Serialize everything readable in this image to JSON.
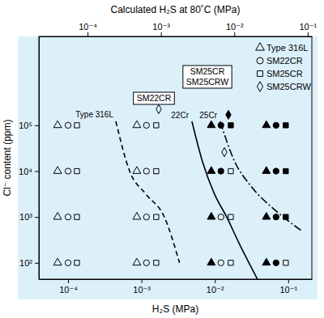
{
  "chart_data": {
    "type": "scatter",
    "log": true,
    "x_label": "H₂S (MPa)",
    "x2_label": "Calculated H₂S at 80˚C (MPa)",
    "y_label": "Cl⁻ content (ppm)",
    "xlim": [
      4e-05,
      0.21
    ],
    "x2lim": [
      2.17e-05,
      0.114
    ],
    "ylim": [
      44,
      8700000
    ],
    "xticks": [
      {
        "value": 0.0001,
        "label": "10⁻⁴"
      },
      {
        "value": 0.001,
        "label": "10⁻³"
      },
      {
        "value": 0.01,
        "label": "10⁻²"
      },
      {
        "value": 0.1,
        "label": "10⁻¹"
      }
    ],
    "x2ticks": [
      {
        "value": 0.0001,
        "label": "10⁻⁴"
      },
      {
        "value": 0.001,
        "label": "10⁻³"
      },
      {
        "value": 0.01,
        "label": "10⁻²"
      },
      {
        "value": 0.1,
        "label": "10⁻¹"
      }
    ],
    "yticks": [
      {
        "value": 100,
        "label": "10²"
      },
      {
        "value": 1000,
        "label": "10³"
      },
      {
        "value": 10000,
        "label": "10⁴"
      },
      {
        "value": 100000,
        "label": "10⁵"
      }
    ],
    "legend": "upper right",
    "series": [
      {
        "name": "Type 316L",
        "marker": "triangle",
        "color": "#000000",
        "x": [
          7.2e-05,
          7.2e-05,
          7.2e-05,
          7.2e-05,
          0.000865,
          0.000865,
          0.000865,
          0.000865,
          0.00895,
          0.00895,
          0.00895,
          0.00895,
          0.0504,
          0.0504,
          0.0504,
          0.0504
        ],
        "values": [
          100000,
          10000,
          1000,
          100,
          100000,
          10000,
          1000,
          100,
          100000,
          10000,
          1000,
          100,
          100000,
          10000,
          1000,
          100
        ],
        "filled": [
          false,
          false,
          false,
          false,
          false,
          false,
          false,
          false,
          true,
          true,
          true,
          true,
          true,
          true,
          true,
          true
        ]
      },
      {
        "name": "SM22CR",
        "marker": "circle",
        "color": "#000000",
        "x": [
          0.0001,
          0.0001,
          0.0001,
          0.0001,
          0.00117,
          0.00117,
          0.00117,
          0.00117,
          0.0121,
          0.0121,
          0.0121,
          0.0121,
          0.0683,
          0.0683,
          0.0683,
          0.0683
        ],
        "values": [
          100000,
          10000,
          1000,
          100,
          100000,
          10000,
          1000,
          100,
          100000,
          10000,
          1000,
          100,
          100000,
          10000,
          1000,
          100
        ],
        "filled": [
          false,
          false,
          false,
          false,
          false,
          false,
          false,
          false,
          true,
          true,
          false,
          false,
          true,
          true,
          true,
          true
        ]
      },
      {
        "name": "SM25CR",
        "marker": "square",
        "color": "#000000",
        "x": [
          0.000132,
          0.000132,
          0.000132,
          0.000132,
          0.00159,
          0.00159,
          0.00159,
          0.00159,
          0.0165,
          0.0165,
          0.0165,
          0.0165,
          0.0927,
          0.0927,
          0.0927,
          0.0927
        ],
        "values": [
          100000,
          10000,
          1000,
          100,
          100000,
          10000,
          1000,
          100,
          100000,
          10000,
          1000,
          100,
          100000,
          10000,
          1000,
          100
        ],
        "filled": [
          false,
          false,
          false,
          false,
          false,
          false,
          false,
          false,
          true,
          false,
          false,
          false,
          true,
          true,
          true,
          false
        ]
      },
      {
        "name": "SM25CRW",
        "marker": "diamond",
        "color": "#000000",
        "x": [
          0.00172,
          0.0153,
          0.0135
        ],
        "values": [
          225000,
          170000,
          26000
        ],
        "filled": [
          false,
          true,
          false
        ]
      }
    ],
    "curves": [
      {
        "label": "Type 316L",
        "line_style": "dashed",
        "color": "#000000",
        "x": [
          0.000448,
          0.00069,
          0.00115,
          0.00205,
          0.0033
        ],
        "values": [
          122000,
          10000,
          3160,
          1000,
          100
        ]
      },
      {
        "label": "22Cr",
        "line_style": "solid",
        "color": "#000000",
        "x": [
          0.00487,
          0.0068,
          0.0099,
          0.0145,
          0.0212,
          0.0381
        ],
        "values": [
          122000,
          16000,
          3160,
          1000,
          276,
          44
        ]
      },
      {
        "label": "25Cr",
        "line_style": "dashdot",
        "color": "#000000",
        "x": [
          0.0118,
          0.0187,
          0.0311,
          0.0666,
          0.15
        ],
        "values": [
          122000,
          16000,
          4700,
          1400,
          508
        ]
      }
    ],
    "annotations": [
      [
        "SM25CR",
        "SM25CRW"
      ],
      [
        "SM22CR"
      ]
    ]
  }
}
